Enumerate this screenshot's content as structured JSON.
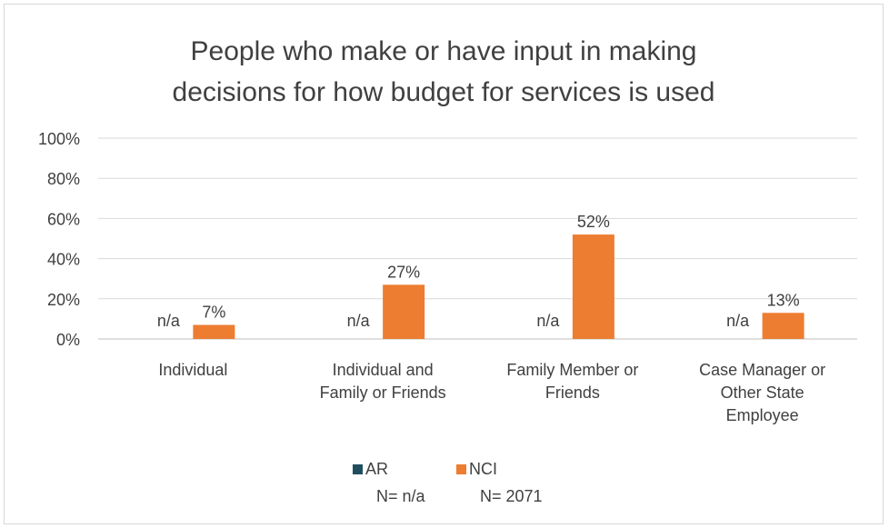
{
  "chart_data": {
    "type": "bar",
    "title_lines": [
      "People who make or have input in making",
      "decisions for how budget for services is used"
    ],
    "categories": [
      [
        "Individual"
      ],
      [
        "Individual and",
        "Family or Friends"
      ],
      [
        "Family Member or",
        "Friends"
      ],
      [
        "Case Manager or",
        "Other State",
        "Employee"
      ]
    ],
    "series": [
      {
        "name": "AR",
        "color": "#1f4e5f",
        "values": [
          null,
          null,
          null,
          null
        ],
        "labels": [
          "n/a",
          "n/a",
          "n/a",
          "n/a"
        ],
        "n_label": "N= n/a"
      },
      {
        "name": "NCI",
        "color": "#ed7d31",
        "values": [
          7,
          27,
          52,
          13
        ],
        "labels": [
          "7%",
          "27%",
          "52%",
          "13%"
        ],
        "n_label": "N= 2071"
      }
    ],
    "ylim": [
      0,
      100
    ],
    "yticks": [
      "0%",
      "20%",
      "40%",
      "60%",
      "80%",
      "100%"
    ],
    "grid": true,
    "legend_position": "bottom"
  }
}
